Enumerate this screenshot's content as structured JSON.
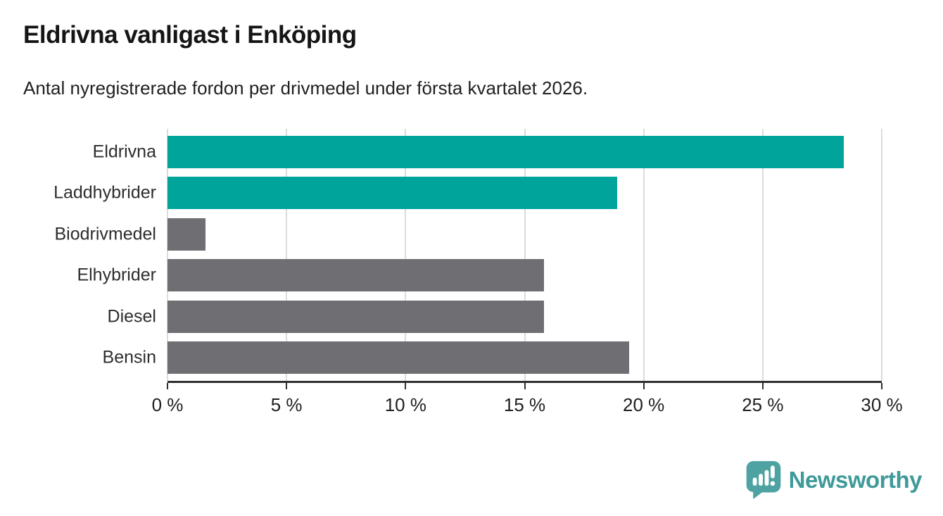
{
  "title": "Eldrivna vanligast i Enköping",
  "subtitle": "Antal nyregistrerade fordon per drivmedel under första kvartalet 2026.",
  "branding": {
    "name": "Newsworthy",
    "icon": "newsworthy-speech-bubble-chart-icon",
    "text_color": "#3f9a9a",
    "icon_color": "#4ea3a2"
  },
  "colors": {
    "highlight": "#00a49b",
    "default_bar": "#6e6e73",
    "gridline": "#dcdcdc",
    "axis": "#2f2f2f"
  },
  "chart_data": {
    "type": "bar",
    "orientation": "horizontal",
    "title": "Eldrivna vanligast i Enköping",
    "subtitle": "Antal nyregistrerade fordon per drivmedel under första kvartalet 2026.",
    "categories": [
      "Eldrivna",
      "Laddhybrider",
      "Biodrivmedel",
      "Elhybrider",
      "Diesel",
      "Bensin"
    ],
    "values": [
      28.4,
      18.9,
      1.6,
      15.8,
      15.8,
      19.4
    ],
    "bar_colors": [
      "#00a49b",
      "#00a49b",
      "#6e6e73",
      "#6e6e73",
      "#6e6e73",
      "#6e6e73"
    ],
    "xlabel": "",
    "ylabel": "",
    "xlim": [
      0,
      30
    ],
    "x_tick_values": [
      0,
      5,
      10,
      15,
      20,
      25,
      30
    ],
    "x_tick_labels": [
      "0 %",
      "5 %",
      "10 %",
      "15 %",
      "20 %",
      "25 %",
      "30 %"
    ],
    "grid": "vertical",
    "legend": "none"
  }
}
